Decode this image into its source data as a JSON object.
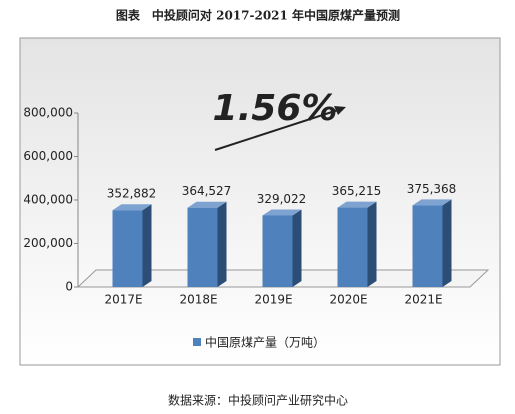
{
  "chart_data": {
    "type": "bar",
    "title": "图表　中投顾问对 2017-2021 年中国原煤产量预测",
    "annotation": "1.56%",
    "categories": [
      "2017E",
      "2018E",
      "2019E",
      "2020E",
      "2021E"
    ],
    "series": [
      {
        "name": "中国原煤产量（万吨）",
        "color": "#4f81bd",
        "values": [
          352882,
          364527,
          329022,
          365215,
          375368
        ],
        "value_labels": [
          "352,882",
          "364,527",
          "329,022",
          "365,215",
          "375,368"
        ]
      }
    ],
    "ylim": [
      0,
      800000
    ],
    "yticks": [
      0,
      {
        "value": 200000,
        "label": "200,000"
      },
      {
        "value": 400000,
        "label": "400,000"
      },
      {
        "value": 600000,
        "label": "600,000"
      },
      {
        "value": 800000,
        "label": "800,000"
      }
    ],
    "source": "数据来源：中投顾问产业研究中心"
  }
}
